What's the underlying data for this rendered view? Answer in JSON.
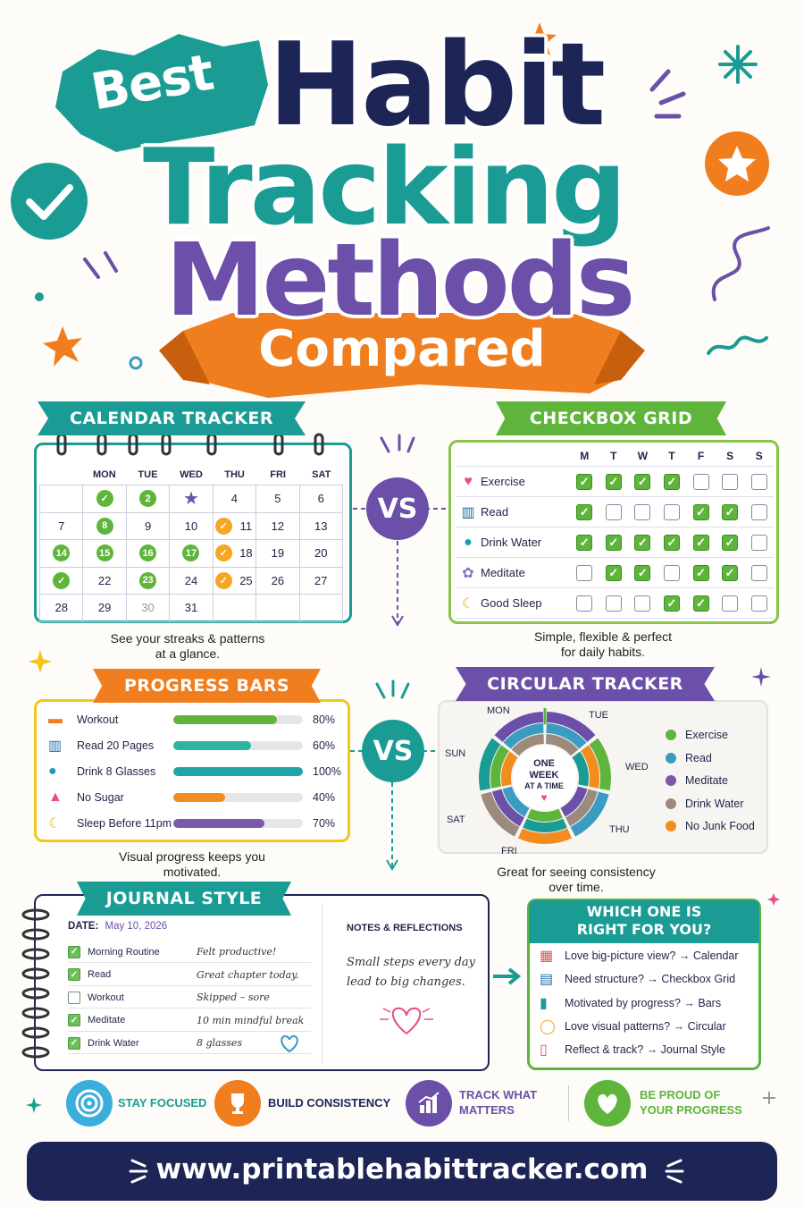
{
  "title": {
    "best": "Best",
    "line1": "Habit",
    "line2": "Tracking",
    "line3": "Methods",
    "line4": "Compared"
  },
  "colors": {
    "navy": "#1d2557",
    "teal": "#1a9c95",
    "purple": "#6c4fa8",
    "orange": "#f07e1f",
    "green": "#5fb53b"
  },
  "calendar": {
    "label": "CALENDAR TRACKER",
    "days": [
      "",
      "MON",
      "TUE",
      "WED",
      "THU",
      "FRI",
      "SAT"
    ],
    "rows": [
      [
        "",
        "✓",
        "2",
        "★",
        "4",
        "5",
        "6"
      ],
      [
        "7",
        "8",
        "9",
        "10",
        "11",
        "12",
        "13"
      ],
      [
        "14",
        "15",
        "16",
        "17",
        "18",
        "19",
        "20"
      ],
      [
        "✓",
        "22",
        "23",
        "24",
        "25",
        "26",
        "27"
      ],
      [
        "28",
        "29",
        "30",
        "31",
        "",
        "",
        ""
      ]
    ],
    "caption1": "See your streaks & patterns",
    "caption2": "at a glance."
  },
  "vs": "VS",
  "checkbox": {
    "label": "CHECKBOX GRID",
    "days": [
      "M",
      "T",
      "W",
      "T",
      "F",
      "S",
      "S"
    ],
    "habits": [
      {
        "name": "Exercise",
        "icon": "heart-dumbbell-icon",
        "checks": [
          1,
          1,
          1,
          1,
          0,
          0,
          0
        ]
      },
      {
        "name": "Read",
        "icon": "book-icon",
        "checks": [
          1,
          0,
          0,
          0,
          1,
          1,
          0
        ]
      },
      {
        "name": "Drink Water",
        "icon": "water-drop-icon",
        "checks": [
          1,
          1,
          1,
          1,
          1,
          1,
          0
        ]
      },
      {
        "name": "Meditate",
        "icon": "lotus-icon",
        "checks": [
          0,
          1,
          1,
          0,
          1,
          1,
          0
        ]
      },
      {
        "name": "Good Sleep",
        "icon": "moon-icon",
        "checks": [
          0,
          0,
          0,
          1,
          1,
          0,
          0
        ]
      }
    ],
    "caption1": "Simple, flexible & perfect",
    "caption2": "for daily habits."
  },
  "progress": {
    "label": "PROGRESS BARS",
    "items": [
      {
        "name": "Workout",
        "value": 80,
        "pct": "80%",
        "color": "#5fb53b",
        "icon": "dumbbell-icon"
      },
      {
        "name": "Read 20 Pages",
        "value": 60,
        "pct": "60%",
        "color": "#2bb3a6",
        "icon": "book-icon"
      },
      {
        "name": "Drink 8 Glasses",
        "value": 100,
        "pct": "100%",
        "color": "#1fa6a8",
        "icon": "water-drop-icon"
      },
      {
        "name": "No Sugar",
        "value": 40,
        "pct": "40%",
        "color": "#f28c1e",
        "icon": "cupcake-icon"
      },
      {
        "name": "Sleep Before 11pm",
        "value": 70,
        "pct": "70%",
        "color": "#7a5aa8",
        "icon": "moon-icon"
      }
    ],
    "caption1": "Visual progress keeps you",
    "caption2": "motivated."
  },
  "circular": {
    "label": "CIRCULAR TRACKER",
    "days": [
      "MON",
      "TUE",
      "WED",
      "THU",
      "FRI",
      "SAT",
      "SUN"
    ],
    "center1": "ONE",
    "center2": "WEEK",
    "center3": "AT A TIME",
    "legend": [
      {
        "name": "Exercise",
        "color": "#5fb53b"
      },
      {
        "name": "Read",
        "color": "#3a9cc0"
      },
      {
        "name": "Meditate",
        "color": "#7a5aa8"
      },
      {
        "name": "Drink Water",
        "color": "#9c8a7c"
      },
      {
        "name": "No Junk Food",
        "color": "#f28c1e"
      }
    ],
    "caption1": "Great for seeing consistency",
    "caption2": "over time."
  },
  "journal": {
    "label": "JOURNAL STYLE",
    "date_label": "DATE:",
    "date_value": "May 10, 2026",
    "entries": [
      {
        "habit": "Morning Routine",
        "note": "Felt productive!",
        "checked": true
      },
      {
        "habit": "Read",
        "note": "Great chapter today.",
        "checked": true
      },
      {
        "habit": "Workout",
        "note": "Skipped – sore",
        "checked": false
      },
      {
        "habit": "Meditate",
        "note": "10 min mindful break",
        "checked": true
      },
      {
        "habit": "Drink Water",
        "note": "8 glasses",
        "checked": true
      }
    ],
    "notes_title": "NOTES & REFLECTIONS",
    "notes1": "Small steps every day",
    "notes2": "lead to big changes."
  },
  "which": {
    "title1": "WHICH ONE IS",
    "title2": "RIGHT FOR YOU?",
    "items": [
      {
        "text": "Love big-picture view? → Calendar",
        "icon": "calendar-icon"
      },
      {
        "text": "Need structure? → Checkbox Grid",
        "icon": "grid-icon"
      },
      {
        "text": "Motivated by progress? → Bars",
        "icon": "bar-chart-icon"
      },
      {
        "text": "Love visual patterns? → Circular",
        "icon": "ring-icon"
      },
      {
        "text": "Reflect & track? → Journal Style",
        "icon": "journal-icon"
      }
    ]
  },
  "badges": [
    {
      "text": "STAY FOCUSED",
      "icon": "target-icon"
    },
    {
      "text": "BUILD CONSISTENCY",
      "icon": "trophy-icon"
    },
    {
      "text1": "TRACK WHAT",
      "text2": "MATTERS",
      "icon": "growth-chart-icon"
    },
    {
      "text1": "BE PROUD OF",
      "text2": "YOUR PROGRESS",
      "icon": "heart-icon"
    }
  ],
  "footer": {
    "url": "www.printablehabittracker.com"
  }
}
